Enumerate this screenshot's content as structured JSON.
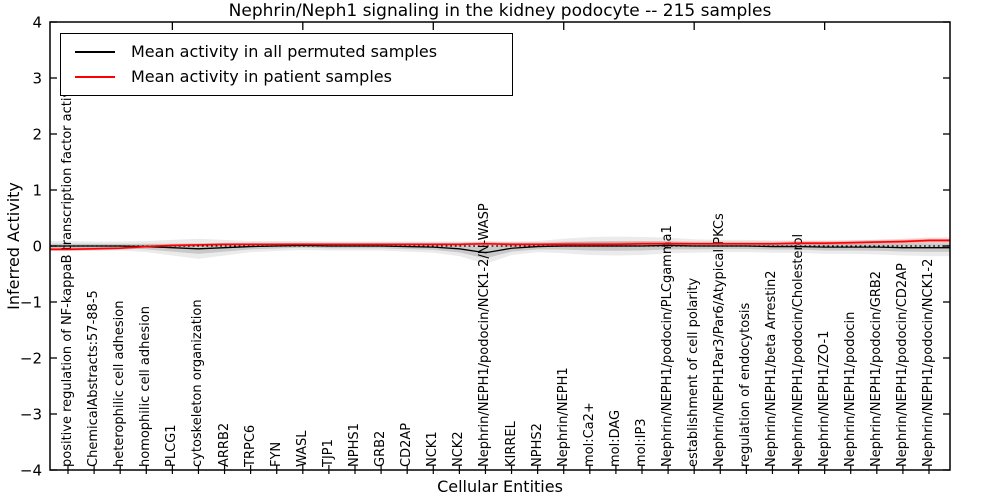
{
  "chart_data": {
    "type": "line",
    "title": "Nephrin/Neph1 signaling in the kidney podocyte -- 215 samples",
    "xlabel": "Cellular Entities",
    "ylabel": "Inferred Activity",
    "ylim": [
      -4,
      4
    ],
    "yticks": [
      -4,
      -3,
      -2,
      -1,
      0,
      1,
      2,
      3,
      4
    ],
    "grid": false,
    "zero_line_style": "dotted",
    "legend_position": "upper left",
    "categories": [
      "positive regulation of NF-kappaB transcription factor activity",
      "ChemicalAbstracts:57-88-5",
      "heterophilic cell adhesion",
      "homophilic cell adhesion",
      "PLCG1",
      "cytoskeleton organization",
      "ARRB2",
      "TRPC6",
      "FYN",
      "WASL",
      "TJP1",
      "NPHS1",
      "GRB2",
      "CD2AP",
      "NCK1",
      "NCK2",
      "Nephrin/NEPH1/podocin/NCK1-2/N-WASP",
      "KIRREL",
      "NPHS2",
      "Nephrin/NEPH1",
      "mol:Ca2+",
      "mol:DAG",
      "mol:IP3",
      "Nephrin/NEPH1/podocin/PLCgamma1",
      "establishment of cell polarity",
      "Nephrin/NEPH1Par3/Par6/Atypical PKCs",
      "regulation of endocytosis",
      "Nephrin/NEPH1/beta Arrestin2",
      "Nephrin/NEPH1/podocin/Cholesterol",
      "Nephrin/NEPH1/ZO-1",
      "Nephrin/NEPH1/podocin",
      "Nephrin/NEPH1/podocin/GRB2",
      "Nephrin/NEPH1/podocin/CD2AP",
      "Nephrin/NEPH1/podocin/NCK1-2"
    ],
    "series": [
      {
        "name": "Mean activity in all permuted samples",
        "color": "#000000",
        "band_color_outer": "rgba(0,0,0,0.08)",
        "band_color_inner": "rgba(0,0,0,0.14)",
        "values": [
          0.0,
          0.0,
          0.0,
          -0.01,
          -0.03,
          -0.05,
          -0.03,
          -0.01,
          0.0,
          0.01,
          0.0,
          0.0,
          0.0,
          -0.01,
          -0.02,
          -0.05,
          -0.12,
          -0.04,
          -0.01,
          0.0,
          0.0,
          0.0,
          0.0,
          0.01,
          0.0,
          0.0,
          0.0,
          -0.01,
          -0.01,
          -0.02,
          -0.02,
          -0.02,
          -0.03,
          -0.03
        ],
        "band": [
          0.09,
          0.08,
          0.08,
          0.1,
          0.14,
          0.18,
          0.14,
          0.1,
          0.09,
          0.08,
          0.08,
          0.08,
          0.08,
          0.09,
          0.1,
          0.13,
          0.2,
          0.12,
          0.1,
          0.13,
          0.16,
          0.17,
          0.16,
          0.14,
          0.12,
          0.11,
          0.11,
          0.11,
          0.11,
          0.12,
          0.12,
          0.13,
          0.14,
          0.15
        ]
      },
      {
        "name": "Mean activity in patient samples",
        "color": "#ff0000",
        "band_color_outer": "rgba(255,0,0,0.15)",
        "band_color_inner": "rgba(255,0,0,0.22)",
        "values": [
          -0.06,
          -0.05,
          -0.04,
          -0.01,
          0.01,
          0.02,
          0.03,
          0.03,
          0.03,
          0.03,
          0.03,
          0.03,
          0.03,
          0.03,
          0.03,
          0.03,
          0.04,
          0.03,
          0.03,
          0.03,
          0.03,
          0.03,
          0.04,
          0.04,
          0.04,
          0.04,
          0.04,
          0.04,
          0.05,
          0.05,
          0.06,
          0.07,
          0.08,
          0.1
        ],
        "band": [
          0.03,
          0.03,
          0.03,
          0.03,
          0.03,
          0.03,
          0.03,
          0.03,
          0.03,
          0.03,
          0.03,
          0.03,
          0.03,
          0.03,
          0.03,
          0.03,
          0.04,
          0.04,
          0.04,
          0.05,
          0.05,
          0.05,
          0.05,
          0.05,
          0.04,
          0.04,
          0.04,
          0.04,
          0.04,
          0.04,
          0.04,
          0.04,
          0.05,
          0.05
        ]
      }
    ]
  }
}
